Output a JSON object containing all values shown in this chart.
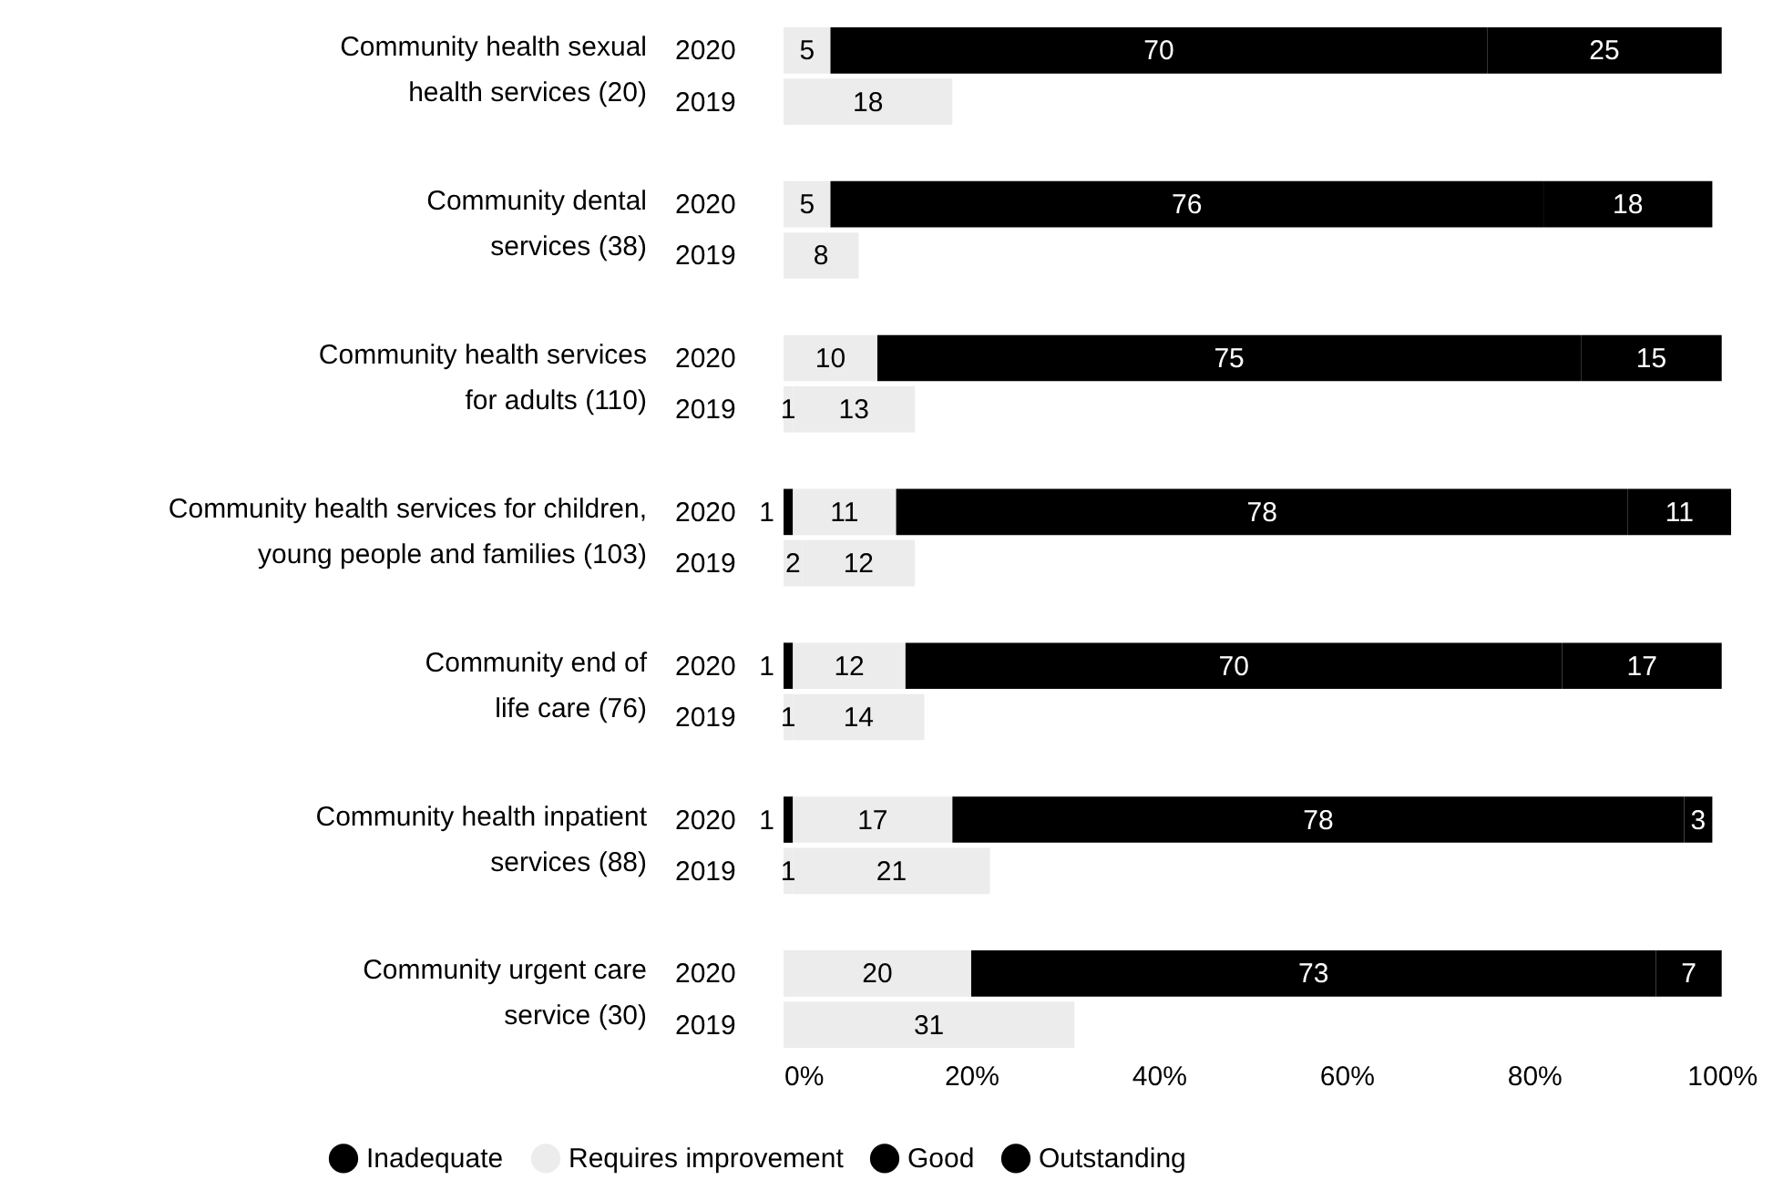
{
  "chart_data": {
    "type": "bar",
    "orientation": "horizontal",
    "stacked": true,
    "data_labels": true,
    "legend": "bottom",
    "categories": [
      "2020",
      "2019",
      "2020",
      "2019",
      "2020",
      "2019",
      "2020",
      "2019",
      "2020",
      "2019",
      "2020",
      "2019",
      "2020",
      "2019"
    ],
    "annotations": [
      "Community health sexual\nhealth services (20)",
      "Community dental\nservices (38)",
      "Community health services\nfor adults (110)",
      "Community health services for children,\nyoung people and families (103)",
      "Community end of\nlife care (76)",
      "Community health inpatient\nservices (88)",
      "Community urgent care\nservice (30)"
    ],
    "series": [
      {
        "name": "Inadequate",
        "color": "#000000",
        "colors": [
          null,
          null,
          null,
          null,
          null,
          "#ececec",
          "#000000",
          "#ececec",
          "#000000",
          "#ececec",
          "#000000",
          "#ececec",
          null,
          null
        ],
        "values": [
          null,
          null,
          null,
          null,
          null,
          1,
          1,
          2,
          1,
          1,
          1,
          1,
          null,
          null
        ]
      },
      {
        "name": "Requires improvement",
        "color": "#ececec",
        "values": [
          5,
          18,
          5,
          8,
          10,
          13,
          11,
          12,
          12,
          14,
          17,
          21,
          20,
          31
        ]
      },
      {
        "name": "Good",
        "color": "#000000",
        "values": [
          70,
          null,
          76,
          null,
          75,
          null,
          78,
          null,
          70,
          null,
          78,
          null,
          73,
          null
        ]
      },
      {
        "name": "Outstanding",
        "color": "#000000",
        "values": [
          25,
          null,
          18,
          null,
          15,
          null,
          11,
          null,
          17,
          null,
          3,
          null,
          7,
          null
        ]
      }
    ],
    "xlim": [
      0,
      101
    ],
    "xticks": [
      {
        "value": 0,
        "label": "0%"
      },
      {
        "value": 20,
        "label": "20%"
      },
      {
        "value": 40,
        "label": "40%"
      },
      {
        "value": 60,
        "label": "60%"
      },
      {
        "value": 80,
        "label": "80%"
      },
      {
        "value": 100,
        "label": "100%"
      }
    ]
  }
}
